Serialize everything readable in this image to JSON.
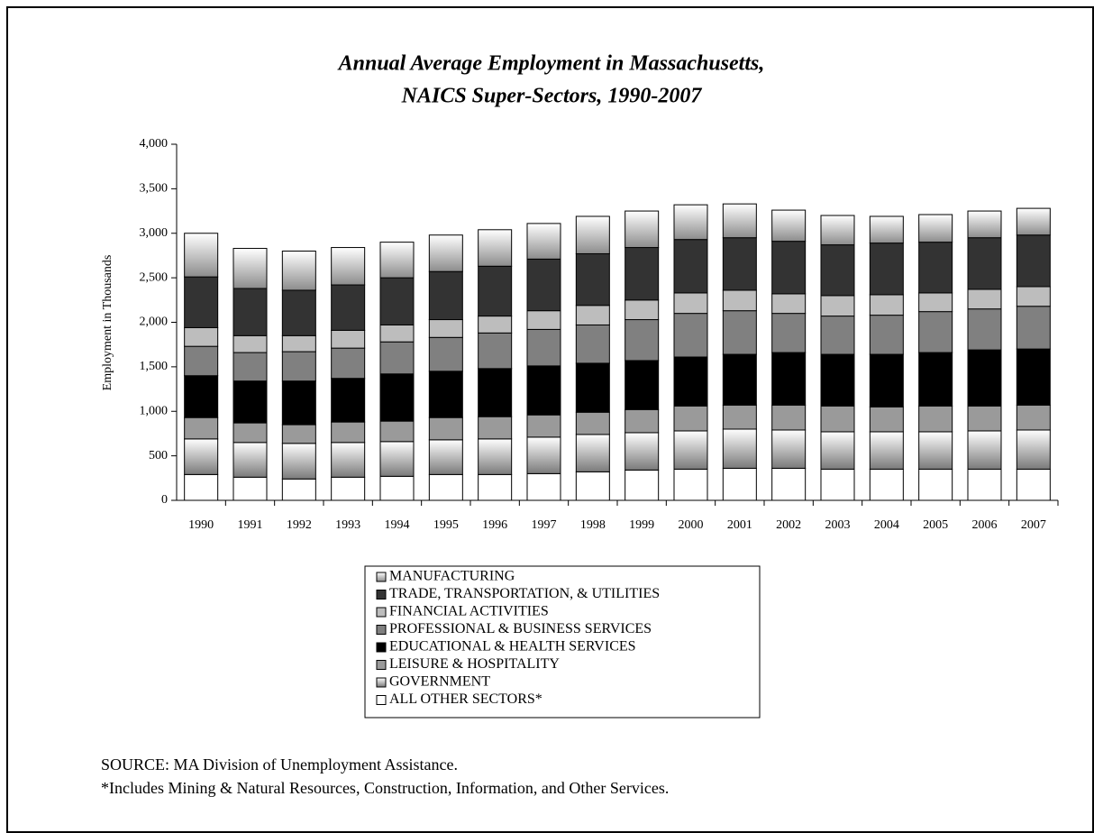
{
  "chart_data": {
    "type": "stacked-bar",
    "title": [
      "Annual Average Employment in Massachusetts,",
      "NAICS Super-Sectors, 1990-2007"
    ],
    "ylabel": "Employment in Thousands",
    "categories": [
      "1990",
      "1991",
      "1992",
      "1993",
      "1994",
      "1995",
      "1996",
      "1997",
      "1998",
      "1999",
      "2000",
      "2001",
      "2002",
      "2003",
      "2004",
      "2005",
      "2006",
      "2007"
    ],
    "series": [
      {
        "name": "MANUFACTURING",
        "color": "#8c8c8c",
        "gradient": true,
        "values": [
          490,
          450,
          440,
          420,
          400,
          410,
          410,
          400,
          420,
          410,
          390,
          380,
          350,
          330,
          300,
          310,
          300,
          300
        ]
      },
      {
        "name": "TRADE, TRANSPORTATION, & UTILITIES",
        "color": "#333333",
        "values": [
          570,
          530,
          510,
          510,
          530,
          540,
          560,
          580,
          580,
          590,
          600,
          590,
          590,
          570,
          580,
          570,
          580,
          580
        ]
      },
      {
        "name": "FINANCIAL ACTIVITIES",
        "color": "#bdbdbd",
        "values": [
          210,
          190,
          180,
          200,
          190,
          200,
          190,
          210,
          220,
          220,
          230,
          230,
          220,
          230,
          230,
          210,
          220,
          220
        ]
      },
      {
        "name": "PROFESSIONAL & BUSINESS SERVICES",
        "color": "#808080",
        "values": [
          330,
          320,
          330,
          340,
          360,
          380,
          400,
          410,
          430,
          460,
          490,
          490,
          440,
          430,
          440,
          460,
          460,
          480
        ]
      },
      {
        "name": "EDUCATIONAL & HEALTH SERVICES",
        "color": "#000000",
        "values": [
          470,
          470,
          490,
          490,
          530,
          520,
          540,
          550,
          550,
          550,
          550,
          570,
          590,
          580,
          590,
          600,
          630,
          630
        ]
      },
      {
        "name": "LEISURE & HOSPITALITY",
        "color": "#9a9a9a",
        "values": [
          240,
          220,
          210,
          230,
          230,
          250,
          250,
          250,
          250,
          260,
          280,
          270,
          280,
          290,
          280,
          290,
          280,
          280
        ]
      },
      {
        "name": "GOVERNMENT",
        "color": "#7a7a7a",
        "gradient": true,
        "values": [
          400,
          390,
          400,
          390,
          390,
          390,
          400,
          410,
          420,
          420,
          430,
          440,
          430,
          420,
          420,
          420,
          430,
          440
        ]
      },
      {
        "name": "ALL OTHER SECTORS*",
        "color": "#ffffff",
        "values": [
          290,
          260,
          240,
          260,
          270,
          290,
          290,
          300,
          320,
          340,
          350,
          360,
          360,
          350,
          350,
          350,
          350,
          350
        ]
      }
    ],
    "ylim": [
      0,
      4000
    ],
    "yticks": [
      0,
      500,
      {
        "value": 1000,
        "label": "1,000"
      },
      {
        "value": 1500,
        "label": "1,500"
      },
      {
        "value": 2000,
        "label": "2,000"
      },
      {
        "value": 2500,
        "label": "2,500"
      },
      {
        "value": 3000,
        "label": "3,000"
      },
      {
        "value": 3500,
        "label": "3,500"
      },
      {
        "value": 4000,
        "label": "4,000"
      }
    ],
    "grid": false,
    "source": "SOURCE:  MA Division of Unemployment Assistance.",
    "note": "*Includes Mining & Natural Resources, Construction, Information, and Other Services."
  }
}
